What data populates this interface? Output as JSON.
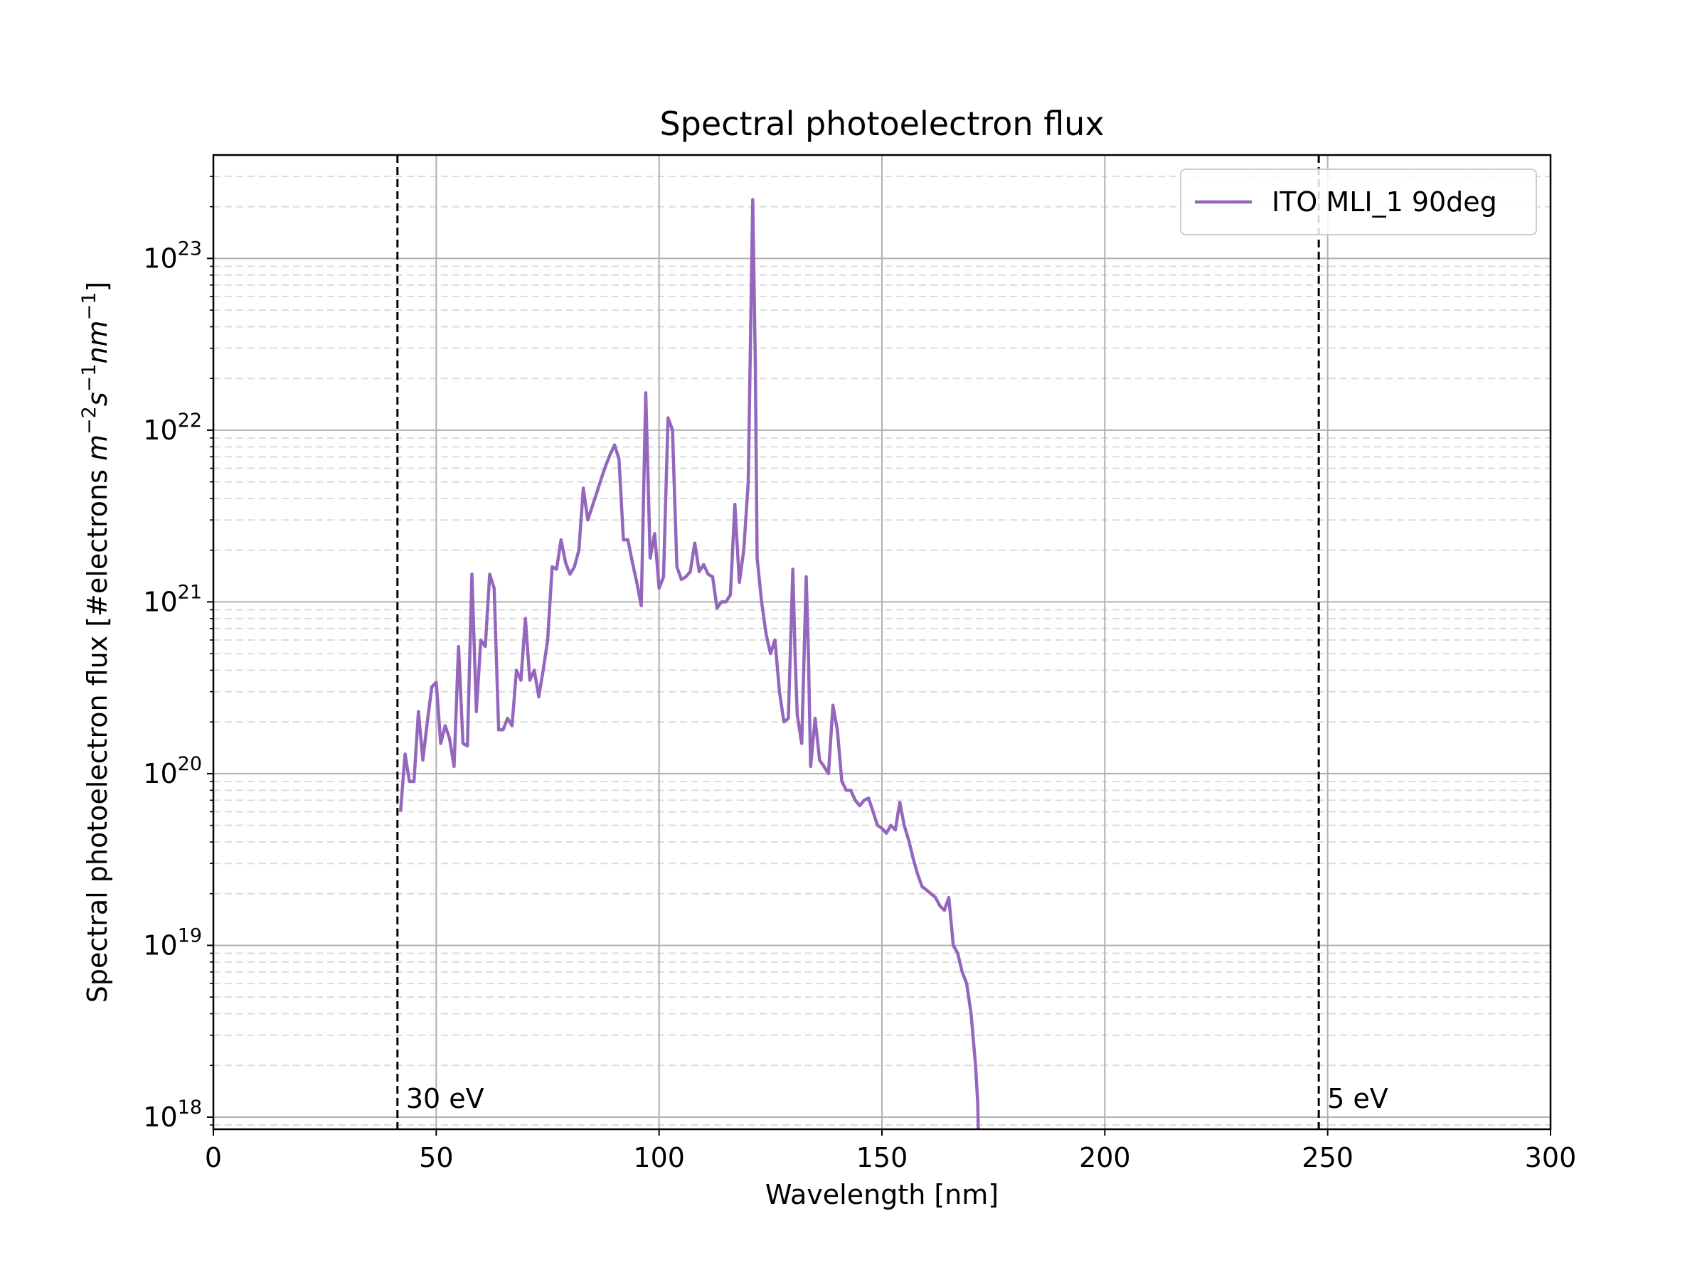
{
  "chart_data": {
    "type": "line",
    "title": "Spectral photoelectron flux",
    "xlabel": "Wavelength [nm]",
    "ylabel_text": "Spectral photoelectron flux [#electrons ",
    "ylabel_units": {
      "m_exp": "−2",
      "s_exp": "−1",
      "nm_exp": "−1"
    },
    "xlim": [
      0,
      300
    ],
    "ylim": [
      8.5e+17,
      4e+23
    ],
    "yscale": "log",
    "xticks": [
      "0",
      "50",
      "100",
      "150",
      "200",
      "250",
      "300"
    ],
    "yticks": [
      {
        "base": "10",
        "exp": "18",
        "value": 1e+18
      },
      {
        "base": "10",
        "exp": "19",
        "value": 1e+19
      },
      {
        "base": "10",
        "exp": "20",
        "value": 1e+20
      },
      {
        "base": "10",
        "exp": "21",
        "value": 1e+21
      },
      {
        "base": "10",
        "exp": "22",
        "value": 1e+22
      },
      {
        "base": "10",
        "exp": "23",
        "value": 1e+23
      }
    ],
    "grid": {
      "major": true,
      "minor_y": true
    },
    "legend_position": "top-right",
    "vlines": [
      {
        "x": 41.3,
        "label": "30 eV",
        "style": "dashed"
      },
      {
        "x": 248,
        "label": "5 eV",
        "style": "dashed"
      }
    ],
    "series": [
      {
        "name": "ITO MLI_1 90deg",
        "color": "#9467bd",
        "x": [
          42,
          43,
          44,
          45,
          46,
          47,
          48,
          49,
          50,
          51,
          52,
          53,
          54,
          55,
          56,
          57,
          58,
          59,
          60,
          61,
          62,
          63,
          64,
          65,
          66,
          67,
          68,
          69,
          70,
          71,
          72,
          73,
          74,
          75,
          76,
          77,
          78,
          79,
          80,
          81,
          82,
          83,
          84,
          85,
          86,
          87,
          88,
          89,
          90,
          91,
          92,
          93,
          94,
          95,
          96,
          97,
          98,
          99,
          100,
          101,
          102,
          103,
          104,
          105,
          106,
          107,
          108,
          109,
          110,
          111,
          112,
          113,
          114,
          115,
          116,
          117,
          118,
          119,
          120,
          121,
          121.6,
          122,
          123,
          124,
          125,
          126,
          127,
          128,
          129,
          130,
          130.5,
          131,
          132,
          133,
          133.5,
          134,
          135,
          136,
          137,
          138,
          139,
          140,
          141,
          142,
          143,
          144,
          145,
          146,
          147,
          148,
          149,
          150,
          151,
          152,
          153,
          154,
          155,
          156,
          157,
          158,
          159,
          160,
          161,
          162,
          163,
          164,
          165,
          166,
          167,
          168,
          169,
          170,
          171,
          171.5,
          171.6
        ],
        "y": [
          6e+19,
          1.3e+20,
          9e+19,
          9e+19,
          2.3e+20,
          1.2e+20,
          2e+20,
          3.2e+20,
          3.4e+20,
          1.5e+20,
          1.9e+20,
          1.6e+20,
          1.1e+20,
          5.5e+20,
          1.5e+20,
          1.45e+20,
          1.45e+21,
          2.3e+20,
          6e+20,
          5.5e+20,
          1.45e+21,
          1.2e+21,
          1.8e+20,
          1.8e+20,
          2.1e+20,
          1.9e+20,
          4e+20,
          3.5e+20,
          8e+20,
          3.5e+20,
          4e+20,
          2.8e+20,
          4e+20,
          6e+20,
          1.6e+21,
          1.55e+21,
          2.3e+21,
          1.7e+21,
          1.45e+21,
          1.6e+21,
          2e+21,
          4.6e+21,
          3e+21,
          3.6e+21,
          4.3e+21,
          5.2e+21,
          6.2e+21,
          7.2e+21,
          8.2e+21,
          6.8e+21,
          2.3e+21,
          2.3e+21,
          1.7e+21,
          1.3e+21,
          9.5e+20,
          1.65e+22,
          1.8e+21,
          2.5e+21,
          1.2e+21,
          1.4e+21,
          1.18e+22,
          1e+22,
          1.6e+21,
          1.35e+21,
          1.4e+21,
          1.5e+21,
          2.2e+21,
          1.5e+21,
          1.65e+21,
          1.45e+21,
          1.4e+21,
          9.2e+20,
          1e+21,
          1e+21,
          1.1e+21,
          3.7e+21,
          1.3e+21,
          2e+21,
          5e+21,
          2.2e+23,
          2.4e+22,
          1.8e+21,
          1e+21,
          6.5e+20,
          5e+20,
          6e+20,
          3e+20,
          2e+20,
          2.1e+20,
          1.55e+21,
          5e+20,
          2.2e+20,
          1.5e+20,
          1.4e+21,
          5e+20,
          1.1e+20,
          2.1e+20,
          1.2e+20,
          1.1e+20,
          1e+20,
          2.5e+20,
          1.8e+20,
          9e+19,
          8e+19,
          8e+19,
          7e+19,
          6.5e+19,
          7e+19,
          7.2e+19,
          6e+19,
          5e+19,
          4.8e+19,
          4.5e+19,
          5e+19,
          4.7e+19,
          6.8e+19,
          5e+19,
          4.1e+19,
          3.2e+19,
          2.6e+19,
          2.2e+19,
          2.1e+19,
          2e+19,
          1.9e+19,
          1.7e+19,
          1.6e+19,
          1.9e+19,
          1e+19,
          9e+18,
          7e+18,
          6e+18,
          4e+18,
          2e+18,
          1.2e+18,
          8e+17
        ]
      }
    ]
  }
}
